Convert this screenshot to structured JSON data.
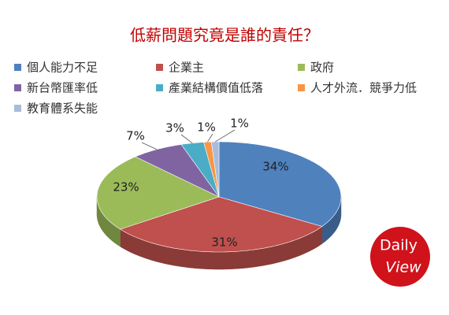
{
  "chart_data": {
    "type": "pie",
    "title": "低薪問題究竟是誰的責任？",
    "categories": [
      "個人能力不足",
      "企業主",
      "政府",
      "新台幣匯率低",
      "產業結構價值低落",
      "人才外流．競爭力低",
      "教育體系失能"
    ],
    "values": [
      34,
      31,
      23,
      7,
      3,
      1,
      1
    ],
    "value_labels": [
      "34%",
      "31%",
      "23%",
      "7%",
      "3%",
      "1%",
      "1%"
    ],
    "colors": [
      "#4f81bd",
      "#c0504d",
      "#9bbb59",
      "#8064a2",
      "#4bacc6",
      "#f79646",
      "#a9bcdc"
    ],
    "legend": "top"
  },
  "logo": {
    "line1": "Daily",
    "line2": "View"
  }
}
